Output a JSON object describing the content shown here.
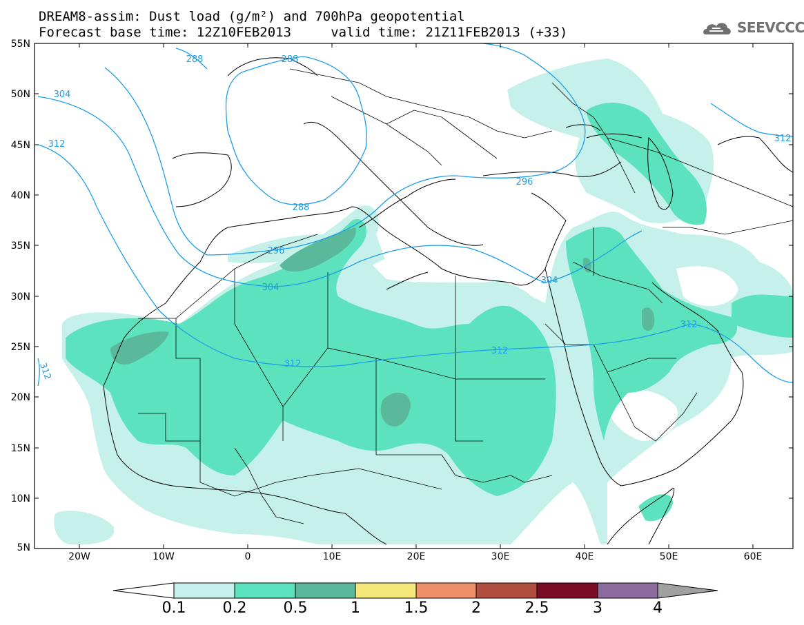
{
  "title": {
    "line1": "DREAM8-assim: Dust load (g/m²) and 700hPa geopotential",
    "line2": "Forecast base time: 12Z10FEB2013     valid time: 21Z11FEB2013 (+33)"
  },
  "logo": {
    "text": "SEEVCCC",
    "icon": "cloud-logo-icon"
  },
  "axes": {
    "lat_labels": [
      "55N",
      "50N",
      "45N",
      "40N",
      "35N",
      "30N",
      "25N",
      "20N",
      "15N",
      "10N",
      "5N"
    ],
    "lon_labels": [
      "20W",
      "10W",
      "0",
      "10E",
      "20E",
      "30E",
      "40E",
      "50E",
      "60E"
    ]
  },
  "contours": {
    "labels": [
      "288",
      "288",
      "288",
      "304",
      "312",
      "296",
      "296",
      "304",
      "304",
      "312",
      "312",
      "312",
      "312",
      "312"
    ]
  },
  "colorbar": {
    "labels": [
      "0.1",
      "0.2",
      "0.5",
      "1",
      "1.5",
      "2",
      "2.5",
      "3",
      "4"
    ],
    "colors": [
      "#ffffff",
      "#c6f1ea",
      "#5ce2bc",
      "#5ab99a",
      "#f5e87a",
      "#eb9069",
      "#b04e40",
      "#7a0c26",
      "#8c6a9e",
      "#a0a0a0"
    ]
  },
  "colors": {
    "dust_0_1": "#c6f1ea",
    "dust_0_2": "#5ce2bc",
    "dust_0_5": "#5ab99a",
    "geopotential": "#1c9ee8",
    "coastline": "#000000"
  }
}
